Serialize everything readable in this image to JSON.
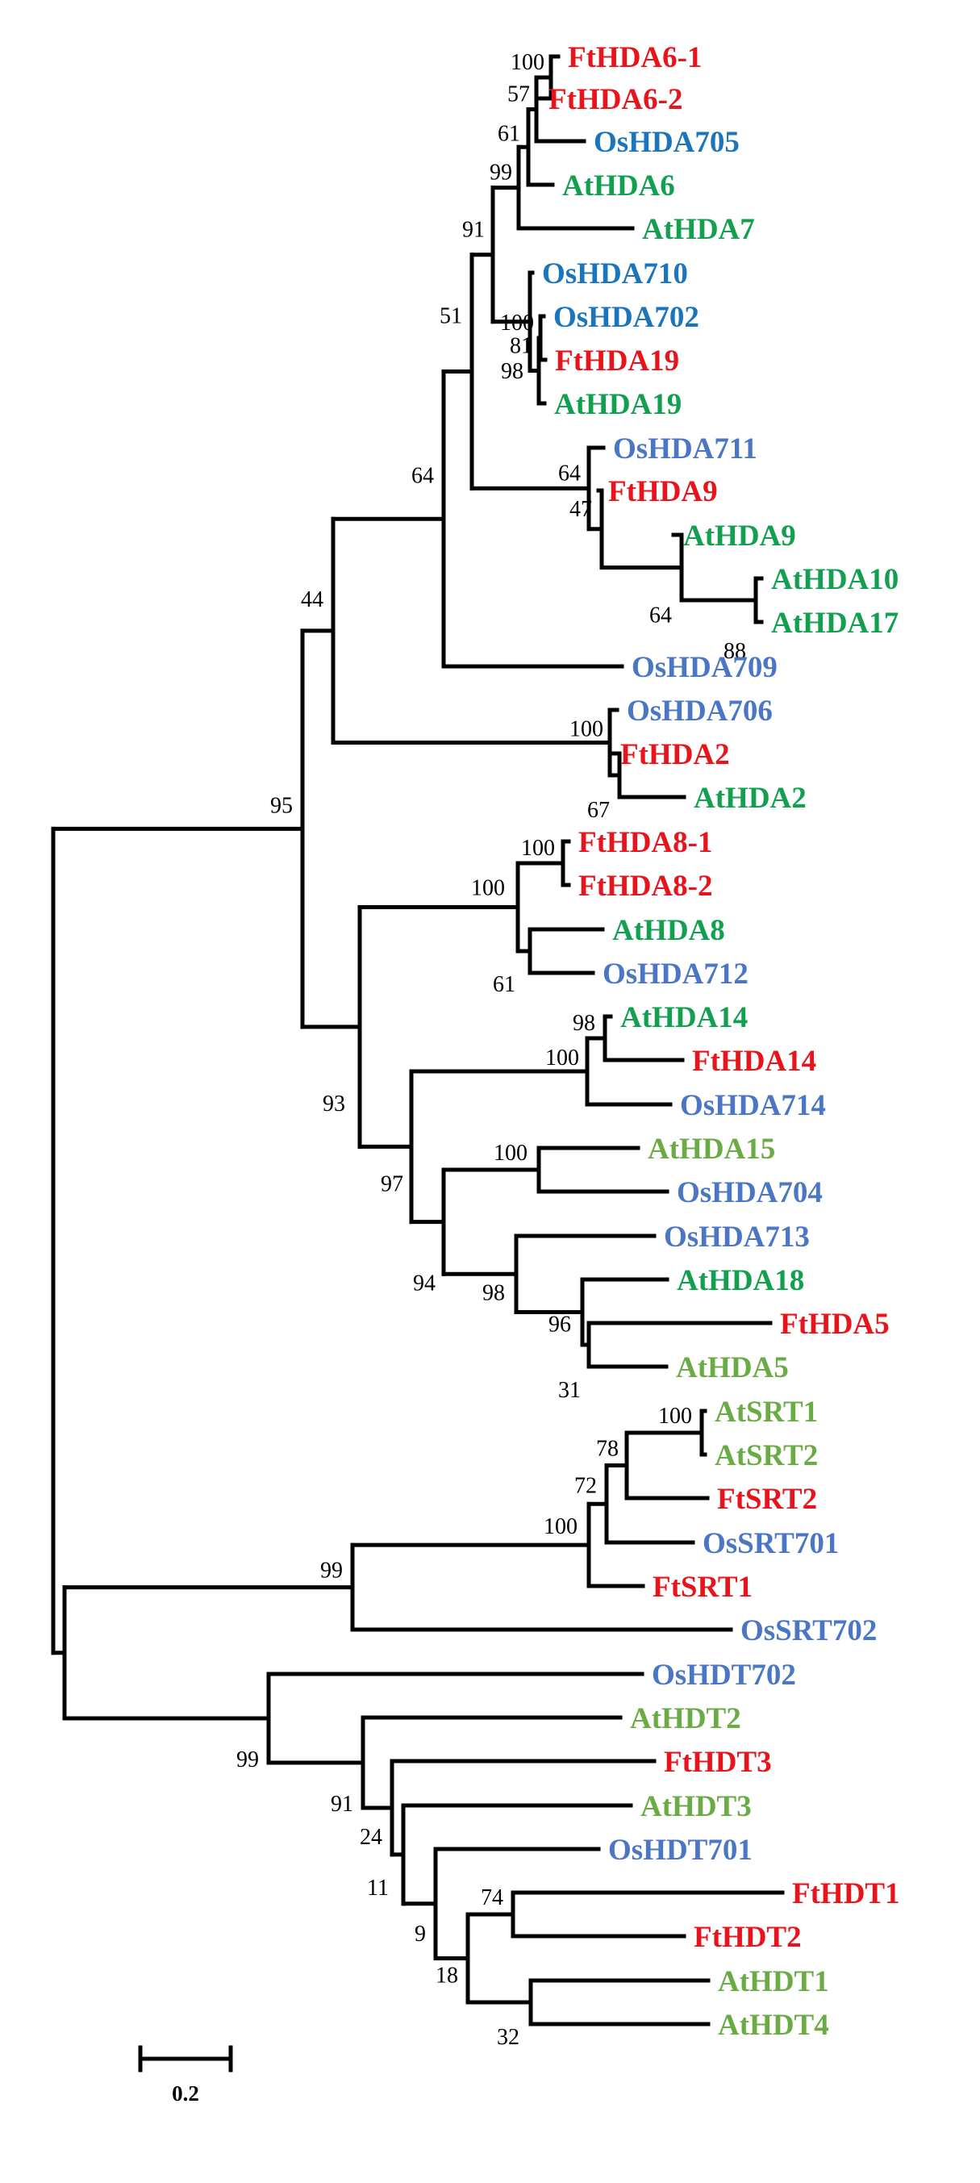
{
  "colors": {
    "ft": "#e8141c",
    "os_blue": "#1b75bc",
    "os_slate": "#4a76c4",
    "at_green": "#12a050",
    "at_olive": "#6aab46",
    "branch": "#000000"
  },
  "taxa": [
    {
      "key": "FtHDA6_1",
      "label": "FtHDA6-1",
      "color": "ft"
    },
    {
      "key": "FtHDA6_2",
      "label": "FtHDA6-2",
      "color": "ft"
    },
    {
      "key": "OsHDA705",
      "label": "OsHDA705",
      "color": "os_blue"
    },
    {
      "key": "AtHDA6",
      "label": "AtHDA6",
      "color": "at_green"
    },
    {
      "key": "AtHDA7",
      "label": "AtHDA7",
      "color": "at_green"
    },
    {
      "key": "OsHDA710",
      "label": "OsHDA710",
      "color": "os_blue"
    },
    {
      "key": "OsHDA702",
      "label": "OsHDA702",
      "color": "os_blue"
    },
    {
      "key": "FtHDA19",
      "label": "FtHDA19",
      "color": "ft"
    },
    {
      "key": "AtHDA19",
      "label": "AtHDA19",
      "color": "at_green"
    },
    {
      "key": "OsHDA711",
      "label": "OsHDA711",
      "color": "os_slate"
    },
    {
      "key": "FtHDA9",
      "label": "FtHDA9",
      "color": "ft"
    },
    {
      "key": "AtHDA9",
      "label": "AtHDA9",
      "color": "at_green"
    },
    {
      "key": "AtHDA10",
      "label": "AtHDA10",
      "color": "at_green"
    },
    {
      "key": "AtHDA17",
      "label": "AtHDA17",
      "color": "at_green"
    },
    {
      "key": "OsHDA709",
      "label": "OsHDA709",
      "color": "os_slate"
    },
    {
      "key": "OsHDA706",
      "label": "OsHDA706",
      "color": "os_slate"
    },
    {
      "key": "FtHDA2",
      "label": "FtHDA2",
      "color": "ft"
    },
    {
      "key": "AtHDA2",
      "label": "AtHDA2",
      "color": "at_green"
    },
    {
      "key": "FtHDA8_1",
      "label": "FtHDA8-1",
      "color": "ft"
    },
    {
      "key": "FtHDA8_2",
      "label": "FtHDA8-2",
      "color": "ft"
    },
    {
      "key": "AtHDA8",
      "label": "AtHDA8",
      "color": "at_green"
    },
    {
      "key": "OsHDA712",
      "label": "OsHDA712",
      "color": "os_slate"
    },
    {
      "key": "AtHDA14",
      "label": "AtHDA14",
      "color": "at_green"
    },
    {
      "key": "FtHDA14",
      "label": "FtHDA14",
      "color": "ft"
    },
    {
      "key": "OsHDA714",
      "label": "OsHDA714",
      "color": "os_slate"
    },
    {
      "key": "AtHDA15",
      "label": "AtHDA15",
      "color": "at_olive"
    },
    {
      "key": "OsHDA704",
      "label": "OsHDA704",
      "color": "os_slate"
    },
    {
      "key": "OsHDA713",
      "label": "OsHDA713",
      "color": "os_slate"
    },
    {
      "key": "AtHDA18",
      "label": "AtHDA18",
      "color": "at_green"
    },
    {
      "key": "FtHDA5",
      "label": "FtHDA5",
      "color": "ft"
    },
    {
      "key": "AtHDA5",
      "label": "AtHDA5",
      "color": "at_olive"
    },
    {
      "key": "AtSRT1",
      "label": "AtSRT1",
      "color": "at_olive"
    },
    {
      "key": "AtSRT2",
      "label": "AtSRT2",
      "color": "at_olive"
    },
    {
      "key": "FtSRT2",
      "label": "FtSRT2",
      "color": "ft"
    },
    {
      "key": "OsSRT701",
      "label": "OsSRT701",
      "color": "os_slate"
    },
    {
      "key": "FtSRT1",
      "label": "FtSRT1",
      "color": "ft"
    },
    {
      "key": "OsSRT702",
      "label": "OsSRT702",
      "color": "os_slate"
    },
    {
      "key": "OsHDT702",
      "label": "OsHDT702",
      "color": "os_slate"
    },
    {
      "key": "AtHDT2",
      "label": "AtHDT2",
      "color": "at_olive"
    },
    {
      "key": "FtHDT3",
      "label": "FtHDT3",
      "color": "ft"
    },
    {
      "key": "AtHDT3",
      "label": "AtHDT3",
      "color": "at_olive"
    },
    {
      "key": "OsHDT701",
      "label": "OsHDT701",
      "color": "os_slate"
    },
    {
      "key": "FtHDT1",
      "label": "FtHDT1",
      "color": "ft"
    },
    {
      "key": "FtHDT2",
      "label": "FtHDT2",
      "color": "ft"
    },
    {
      "key": "AtHDT1",
      "label": "AtHDT1",
      "color": "at_olive"
    },
    {
      "key": "AtHDT4",
      "label": "AtHDT4",
      "color": "at_olive"
    }
  ],
  "support_values": {
    "n_ft6": "100",
    "n_ft6b": "57",
    "n_705": "61",
    "n_at6": "99",
    "n_hda6grp": "91",
    "n_19grp": "100",
    "n_19b": "81",
    "n_19c": "98",
    "n_grp1": "51",
    "n_9grp": "64",
    "n_9b": "47",
    "n_at9": "64",
    "n_1017": "88",
    "n_grp1plus": "64",
    "n_hda2grp": "100",
    "n_hda2b": "67",
    "n_class1": "44",
    "n_ft8": "100",
    "n_hda8": "100",
    "n_hda8b": "61",
    "n_at14": "98",
    "n_hda14": "100",
    "n_hda15": "100",
    "n_hda5b": "31",
    "n_hda5a": "96",
    "n_hda18": "98",
    "n_hda15_18": "94",
    "n_class2b": "97",
    "n_class2": "93",
    "n_root_hda": "95",
    "n_atsrt": "100",
    "n_srt2": "78",
    "n_srt701": "72",
    "n_srt1": "100",
    "n_srt": "99",
    "n_hdt1a": "74",
    "n_hdt14": "32",
    "n_hdt1b": "18",
    "n_hdt701": "9",
    "n_hdt3b": "11",
    "n_hdt3": "24",
    "n_hdt2": "91",
    "n_hdt": "99"
  },
  "scale_bar": {
    "label": "0.2"
  }
}
